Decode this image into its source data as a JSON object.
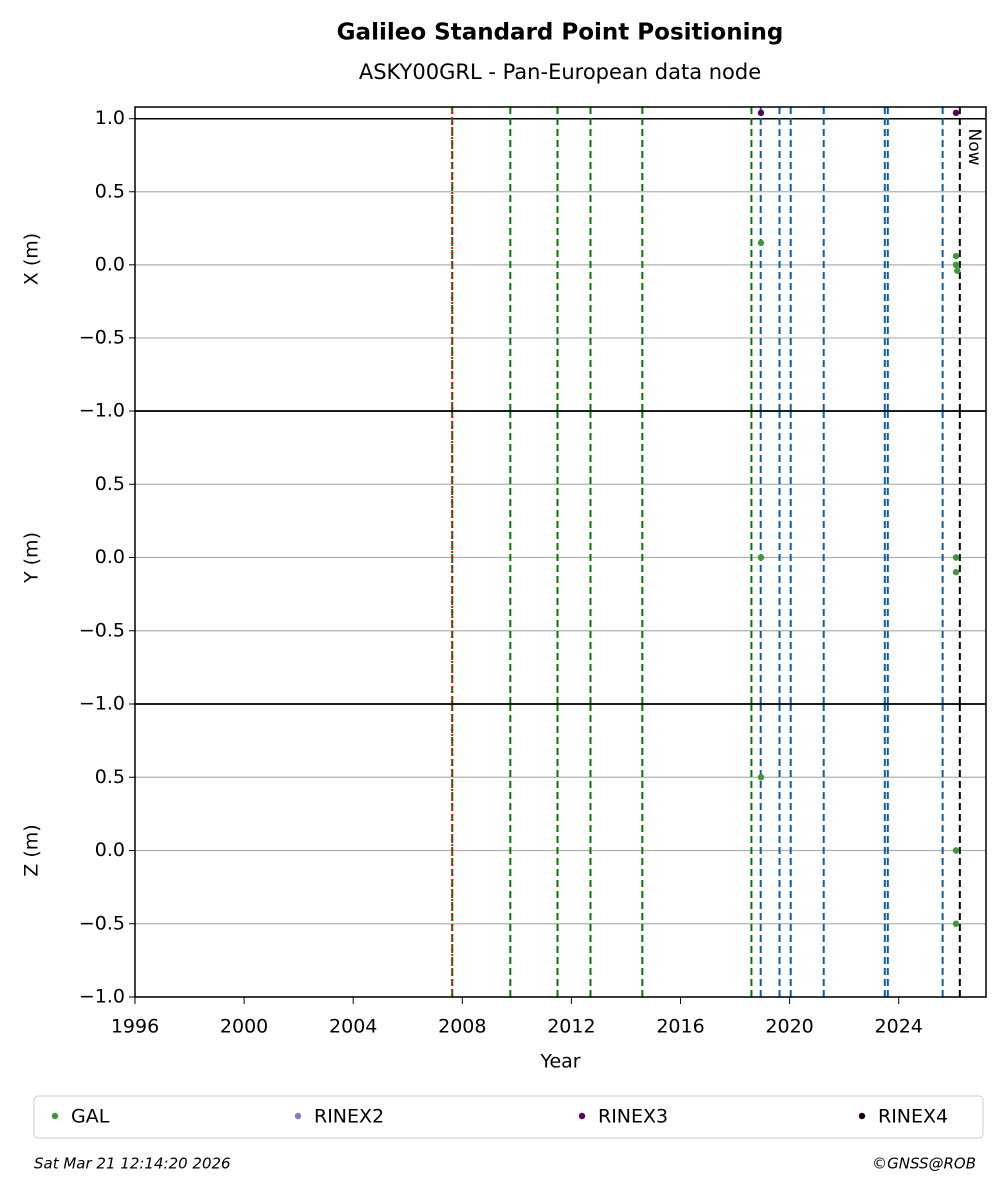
{
  "title": "Galileo Standard Point Positioning",
  "subtitle": "ASKY00GRL - Pan-European data node",
  "footer": {
    "left": "Sat Mar 21 12:14:20 2026",
    "right": "©GNSS@ROB"
  },
  "chart_data": [
    {
      "type": "scatter",
      "ylabel": "X (m)",
      "xlim": [
        1996,
        2027.2
      ],
      "ylim": [
        -1,
        1.08
      ],
      "yticks": [
        {
          "value": -1,
          "label": "−1.0"
        },
        {
          "value": -0.5,
          "label": "−0.5"
        },
        {
          "value": 0,
          "label": "0.0"
        },
        {
          "value": 0.5,
          "label": "0.5"
        },
        {
          "value": 1,
          "label": "1.0"
        }
      ],
      "grid": true,
      "hline": 1,
      "annotation": "Now",
      "vlines": [
        {
          "x": 2007.63,
          "color": "#007a00",
          "linestyle": "dashed"
        },
        {
          "x": 2007.63,
          "color": "#ff0000",
          "linestyle": "dotted"
        },
        {
          "x": 2009.76,
          "color": "#007a00",
          "linestyle": "dashed"
        },
        {
          "x": 2011.49,
          "color": "#007a00",
          "linestyle": "dashed"
        },
        {
          "x": 2012.7,
          "color": "#007a00",
          "linestyle": "dashed"
        },
        {
          "x": 2014.6,
          "color": "#007a00",
          "linestyle": "dashed"
        },
        {
          "x": 2018.6,
          "color": "#007a00",
          "linestyle": "dashed"
        },
        {
          "x": 2018.94,
          "color": "#0b5ea8",
          "linestyle": "dashed"
        },
        {
          "x": 2019.63,
          "color": "#0b5ea8",
          "linestyle": "dashed"
        },
        {
          "x": 2020.04,
          "color": "#0b5ea8",
          "linestyle": "dashed"
        },
        {
          "x": 2021.25,
          "color": "#0b5ea8",
          "linestyle": "dashed"
        },
        {
          "x": 2023.49,
          "color": "#0b5ea8",
          "linestyle": "dashed"
        },
        {
          "x": 2023.6,
          "color": "#0b5ea8",
          "linestyle": "dashed"
        },
        {
          "x": 2025.61,
          "color": "#0b5ea8",
          "linestyle": "dashed"
        },
        {
          "x": 2026.24,
          "color": "#000000",
          "linestyle": "dashed"
        }
      ],
      "series": [
        {
          "name": "GAL",
          "color": "#3a9a3a",
          "x": [
            2018.95,
            2026.1,
            2026.1,
            2026.15
          ],
          "values": [
            0.15,
            0.06,
            0.0,
            -0.04
          ]
        },
        {
          "name": "RINEX2",
          "color": "#7b7bc8",
          "x": [],
          "values": []
        },
        {
          "name": "RINEX3",
          "color": "#5a005a",
          "x": [
            2018.95,
            2026.1
          ],
          "values": [
            1.04,
            1.04
          ]
        },
        {
          "name": "RINEX4",
          "color": "#1a0010",
          "x": [],
          "values": []
        }
      ]
    },
    {
      "type": "scatter",
      "ylabel": "Y (m)",
      "xlim": [
        1996,
        2027.2
      ],
      "ylim": [
        -1,
        1
      ],
      "yticks": [
        {
          "value": -1,
          "label": "−1.0"
        },
        {
          "value": -0.5,
          "label": "−0.5"
        },
        {
          "value": 0,
          "label": "0.0"
        },
        {
          "value": 0.5,
          "label": "0.5"
        }
      ],
      "grid": true,
      "vlines": [
        {
          "x": 2007.63,
          "color": "#007a00",
          "linestyle": "dashed"
        },
        {
          "x": 2007.63,
          "color": "#ff0000",
          "linestyle": "dotted"
        },
        {
          "x": 2009.76,
          "color": "#007a00",
          "linestyle": "dashed"
        },
        {
          "x": 2011.49,
          "color": "#007a00",
          "linestyle": "dashed"
        },
        {
          "x": 2012.7,
          "color": "#007a00",
          "linestyle": "dashed"
        },
        {
          "x": 2014.6,
          "color": "#007a00",
          "linestyle": "dashed"
        },
        {
          "x": 2018.6,
          "color": "#007a00",
          "linestyle": "dashed"
        },
        {
          "x": 2018.94,
          "color": "#0b5ea8",
          "linestyle": "dashed"
        },
        {
          "x": 2019.63,
          "color": "#0b5ea8",
          "linestyle": "dashed"
        },
        {
          "x": 2020.04,
          "color": "#0b5ea8",
          "linestyle": "dashed"
        },
        {
          "x": 2021.25,
          "color": "#0b5ea8",
          "linestyle": "dashed"
        },
        {
          "x": 2023.49,
          "color": "#0b5ea8",
          "linestyle": "dashed"
        },
        {
          "x": 2023.6,
          "color": "#0b5ea8",
          "linestyle": "dashed"
        },
        {
          "x": 2025.61,
          "color": "#0b5ea8",
          "linestyle": "dashed"
        },
        {
          "x": 2026.24,
          "color": "#000000",
          "linestyle": "dashed"
        }
      ],
      "series": [
        {
          "name": "GAL",
          "color": "#3a9a3a",
          "x": [
            2018.95,
            2026.1,
            2026.1
          ],
          "values": [
            0.0,
            0.0,
            -0.1
          ]
        }
      ]
    },
    {
      "type": "scatter",
      "ylabel": "Z (m)",
      "xlabel": "Year",
      "xlim": [
        1996,
        2027.2
      ],
      "ylim": [
        -1,
        1
      ],
      "xticks": [
        1996,
        2000,
        2004,
        2008,
        2012,
        2016,
        2020,
        2024
      ],
      "yticks": [
        {
          "value": -1,
          "label": "−1.0"
        },
        {
          "value": -0.5,
          "label": "−0.5"
        },
        {
          "value": 0,
          "label": "0.0"
        },
        {
          "value": 0.5,
          "label": "0.5"
        }
      ],
      "grid": true,
      "vlines": [
        {
          "x": 2007.63,
          "color": "#007a00",
          "linestyle": "dashed"
        },
        {
          "x": 2007.63,
          "color": "#ff0000",
          "linestyle": "dotted"
        },
        {
          "x": 2009.76,
          "color": "#007a00",
          "linestyle": "dashed"
        },
        {
          "x": 2011.49,
          "color": "#007a00",
          "linestyle": "dashed"
        },
        {
          "x": 2012.7,
          "color": "#007a00",
          "linestyle": "dashed"
        },
        {
          "x": 2014.6,
          "color": "#007a00",
          "linestyle": "dashed"
        },
        {
          "x": 2018.6,
          "color": "#007a00",
          "linestyle": "dashed"
        },
        {
          "x": 2018.94,
          "color": "#0b5ea8",
          "linestyle": "dashed"
        },
        {
          "x": 2019.63,
          "color": "#0b5ea8",
          "linestyle": "dashed"
        },
        {
          "x": 2020.04,
          "color": "#0b5ea8",
          "linestyle": "dashed"
        },
        {
          "x": 2021.25,
          "color": "#0b5ea8",
          "linestyle": "dashed"
        },
        {
          "x": 2023.49,
          "color": "#0b5ea8",
          "linestyle": "dashed"
        },
        {
          "x": 2023.6,
          "color": "#0b5ea8",
          "linestyle": "dashed"
        },
        {
          "x": 2025.61,
          "color": "#0b5ea8",
          "linestyle": "dashed"
        },
        {
          "x": 2026.24,
          "color": "#000000",
          "linestyle": "dashed"
        }
      ],
      "series": [
        {
          "name": "GAL",
          "color": "#3a9a3a",
          "x": [
            2018.95,
            2026.1,
            2026.1
          ],
          "values": [
            0.5,
            0.0,
            -0.5
          ]
        }
      ]
    }
  ]
}
